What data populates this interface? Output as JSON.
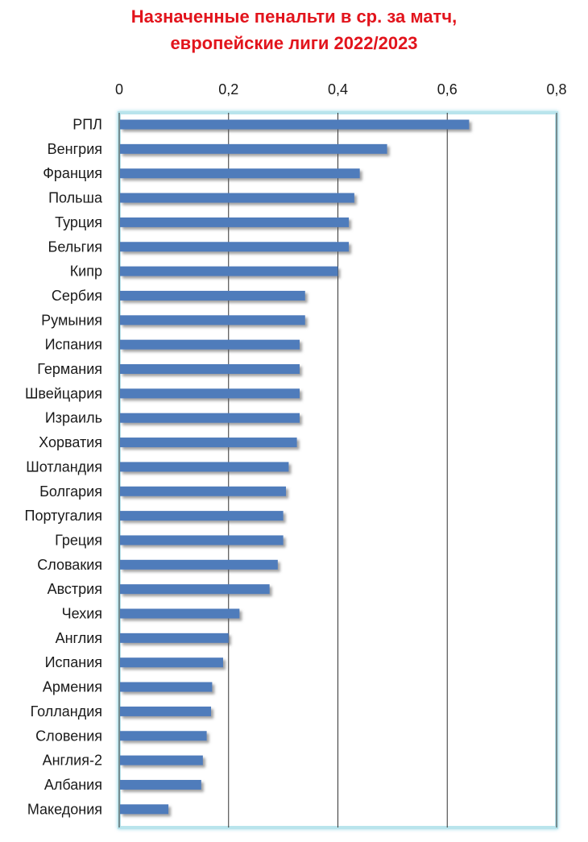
{
  "chart_data": {
    "type": "bar",
    "orientation": "horizontal",
    "title": [
      "Назначенные пенальти в ср. за матч,",
      "европейские лиги 2022/2023"
    ],
    "xlabel": "",
    "ylabel": "",
    "xlim": [
      0,
      0.8
    ],
    "ticks": [
      0,
      0.2,
      0.4,
      0.6,
      0.8
    ],
    "tick_labels": [
      "0",
      "0,2",
      "0,4",
      "0,6",
      "0,8"
    ],
    "axis_position": "top",
    "grid": true,
    "legend": "none",
    "colors": {
      "bar": "#4f7bbb",
      "bar_shadow": "#8a8a8a",
      "plot_border": "#b9e4ec",
      "title": "#e2141c",
      "grid": "#333333"
    },
    "categories": [
      "РПЛ",
      "Венгрия",
      "Франция",
      "Польша",
      "Турция",
      "Бельгия",
      "Кипр",
      "Сербия",
      "Румыния",
      "Испания",
      "Германия",
      "Швейцария",
      "Израиль",
      "Хорватия",
      "Шотландия",
      "Болгария",
      "Португалия",
      "Греция",
      "Словакия",
      "Австрия",
      "Чехия",
      "Англия",
      "Испания",
      "Армения",
      "Голландия",
      "Словения",
      "Англия-2",
      "Албания",
      "Македония"
    ],
    "values": [
      0.64,
      0.49,
      0.44,
      0.43,
      0.42,
      0.42,
      0.4,
      0.34,
      0.34,
      0.33,
      0.33,
      0.33,
      0.33,
      0.325,
      0.31,
      0.305,
      0.3,
      0.3,
      0.29,
      0.275,
      0.22,
      0.2,
      0.19,
      0.17,
      0.168,
      0.16,
      0.153,
      0.15,
      0.09
    ]
  }
}
